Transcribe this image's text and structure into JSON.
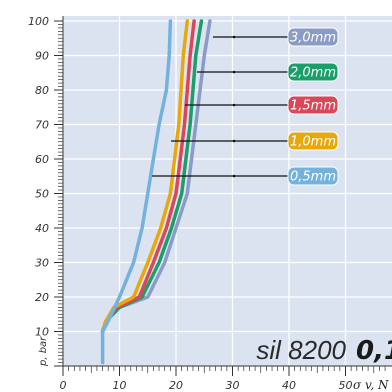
{
  "chart_data": {
    "type": "line",
    "x_ticks": [
      "0",
      "10",
      "20",
      "30",
      "40",
      "50"
    ],
    "y_ticks": [
      "10",
      "20",
      "30",
      "40",
      "50",
      "60",
      "70",
      "80",
      "90",
      "100"
    ],
    "xlim": [
      0,
      57
    ],
    "ylim": [
      0,
      100
    ],
    "ylabel": "p, bar",
    "xlabel": "σ v, N",
    "grid": true,
    "title_left": "sil 8200",
    "title_value": "0,1",
    "series": [
      {
        "name": "3,0 mm",
        "color": "#8b9bc7",
        "x": [
          7,
          7.6,
          10,
          15,
          18,
          20,
          22,
          23.5,
          25,
          26
        ],
        "y": [
          10,
          13,
          17,
          20,
          30,
          40,
          50,
          70,
          90,
          100
        ]
      },
      {
        "name": "2,0 mm",
        "color": "#1a9e6a",
        "x": [
          7,
          7.6,
          10,
          14,
          17,
          19.2,
          21,
          22.5,
          23.5,
          24.5
        ],
        "y": [
          10,
          13,
          17,
          20,
          30,
          40,
          50,
          70,
          90,
          100
        ]
      },
      {
        "name": "1,5 mm",
        "color": "#d9485a",
        "x": [
          7,
          7.6,
          9.5,
          13.5,
          16,
          18.3,
          20,
          21.5,
          22.5,
          23.2
        ],
        "y": [
          10,
          13,
          17,
          20,
          30,
          40,
          50,
          70,
          90,
          100
        ]
      },
      {
        "name": "1,0 mm",
        "color": "#e8a80a",
        "x": [
          7,
          7.6,
          9,
          12.5,
          15,
          17.3,
          19,
          20.5,
          21.3,
          22
        ],
        "y": [
          10,
          13,
          17,
          20,
          30,
          40,
          50,
          70,
          90,
          100
        ]
      },
      {
        "name": "0,5 mm",
        "color": "#72b2dc",
        "x": [
          7,
          7,
          8,
          10,
          12.5,
          14,
          16,
          17,
          18.3,
          18.8,
          19
        ],
        "y": [
          1,
          10,
          13,
          20,
          30,
          40,
          60,
          70,
          80,
          90,
          100
        ]
      }
    ]
  }
}
